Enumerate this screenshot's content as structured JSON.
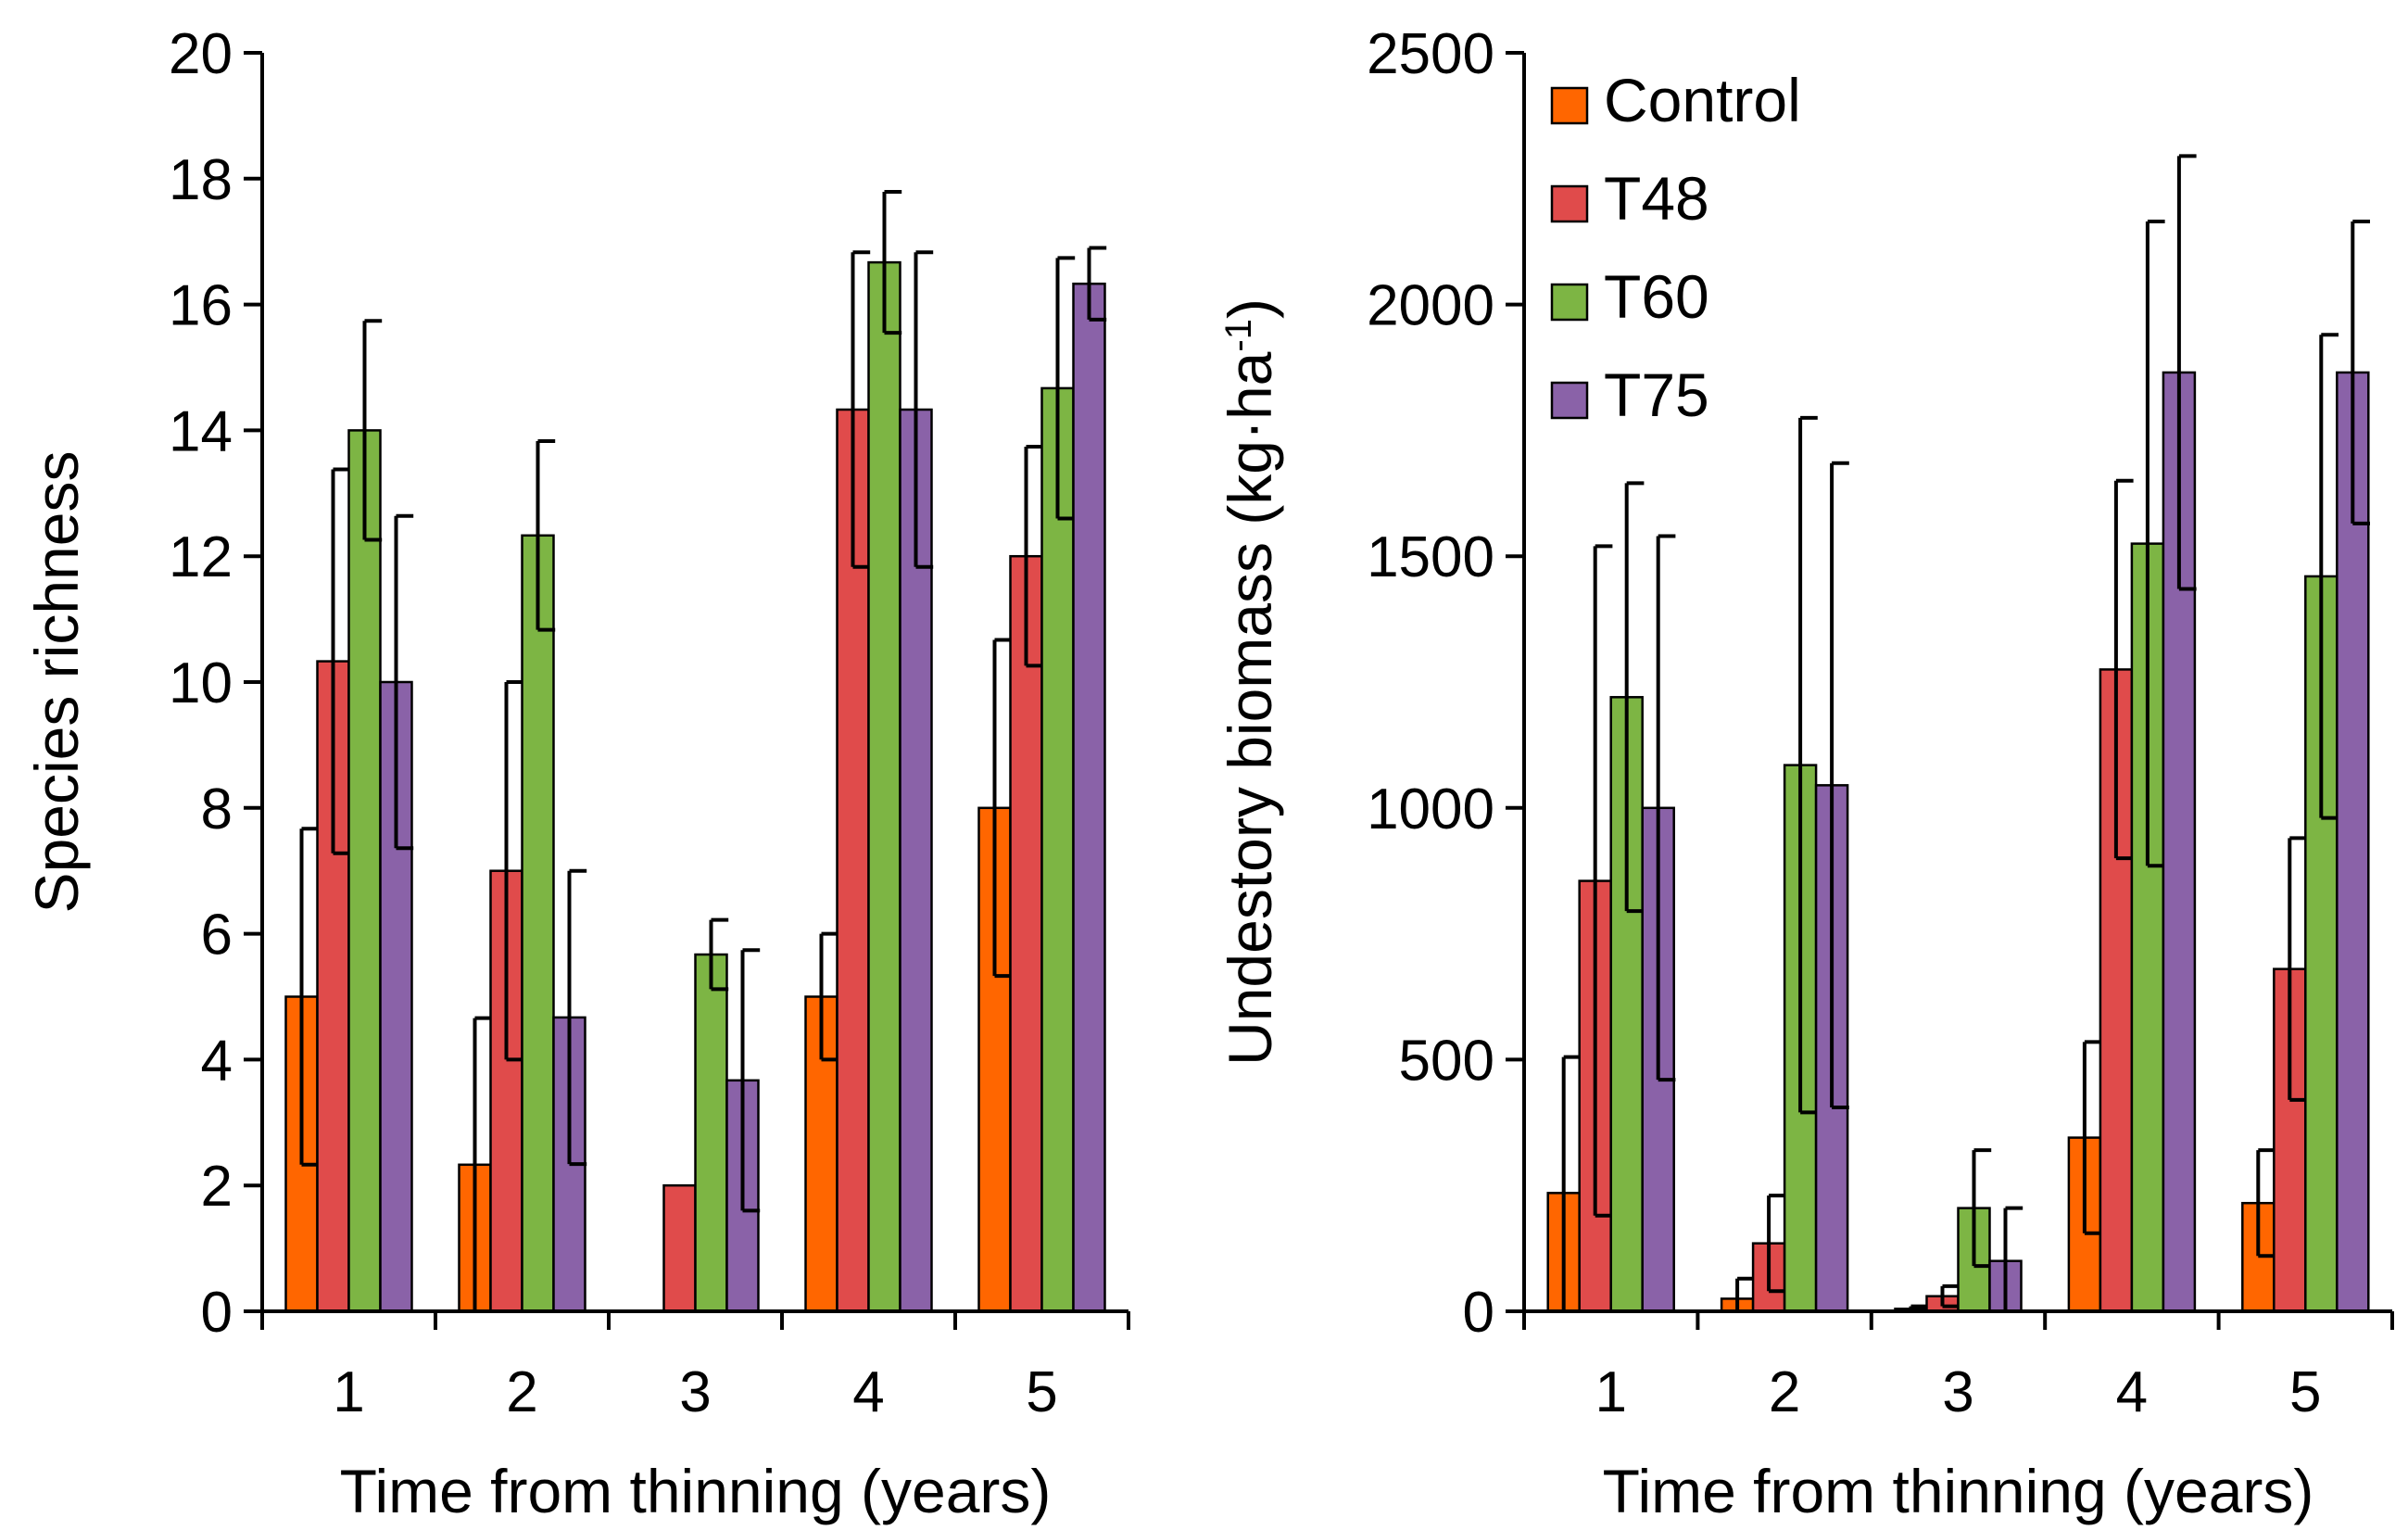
{
  "chart_data": [
    {
      "type": "bar",
      "title": "",
      "xlabel": "Time from thinning (years)",
      "ylabel": "Species richness",
      "ylim": [
        0,
        20
      ],
      "yticks": [
        "0",
        "2",
        "4",
        "6",
        "8",
        "10",
        "12",
        "14",
        "16",
        "18",
        "20"
      ],
      "categories": [
        "1",
        "2",
        "3",
        "4",
        "5"
      ],
      "series": [
        {
          "name": "Control",
          "color": "#FF6600",
          "values": [
            5.0,
            2.33,
            0,
            5.0,
            8.0
          ],
          "errors": [
            2.67,
            2.33,
            0,
            1.0,
            2.67
          ]
        },
        {
          "name": "T48",
          "color": "#E04B4B",
          "values": [
            10.33,
            7.0,
            2.0,
            14.33,
            12.0
          ],
          "errors": [
            3.05,
            3.0,
            0,
            2.5,
            1.74
          ]
        },
        {
          "name": "T60",
          "color": "#7DB544",
          "values": [
            14.0,
            12.33,
            5.67,
            16.67,
            14.67
          ],
          "errors": [
            1.74,
            1.5,
            0.55,
            1.12,
            2.07
          ]
        },
        {
          "name": "T75",
          "color": "#8A62A8",
          "values": [
            10.0,
            4.67,
            3.67,
            14.33,
            16.33
          ],
          "errors": [
            2.64,
            2.33,
            2.07,
            2.5,
            0.57
          ]
        }
      ]
    },
    {
      "type": "bar",
      "title": "",
      "xlabel": "Time from thinning (years)",
      "ylabel": "Undestory biomass (kg·ha",
      "ylabel_sup": "-1",
      "ylabel_end": ")",
      "ylim": [
        0,
        2500
      ],
      "yticks": [
        "0",
        "500",
        "1000",
        "1500",
        "2000",
        "2500"
      ],
      "categories": [
        "1",
        "2",
        "3",
        "4",
        "5"
      ],
      "legend": {
        "position": "top-left"
      },
      "series": [
        {
          "name": "Control",
          "color": "#FF6600",
          "values": [
            235,
            25,
            5,
            345,
            215
          ],
          "errors": [
            270,
            40,
            5,
            190,
            105
          ]
        },
        {
          "name": "T48",
          "color": "#E04B4B",
          "values": [
            855,
            135,
            30,
            1275,
            680
          ],
          "errors": [
            665,
            95,
            20,
            375,
            260
          ]
        },
        {
          "name": "T60",
          "color": "#7DB544",
          "values": [
            1220,
            1085,
            205,
            1525,
            1460
          ],
          "errors": [
            425,
            690,
            115,
            640,
            480
          ]
        },
        {
          "name": "T75",
          "color": "#8A62A8",
          "values": [
            1000,
            1045,
            100,
            1865,
            1865
          ],
          "errors": [
            540,
            640,
            105,
            430,
            300
          ]
        }
      ]
    }
  ]
}
